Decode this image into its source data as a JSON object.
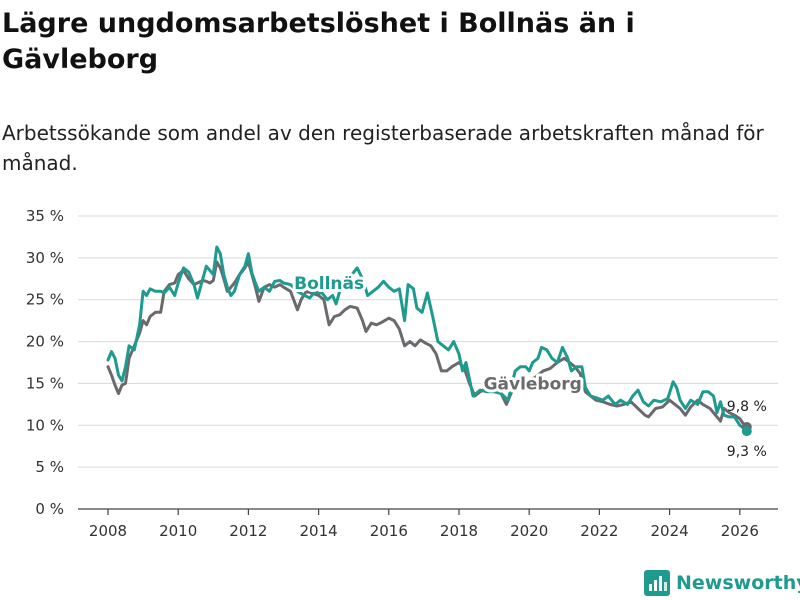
{
  "chart_data": {
    "type": "line",
    "title": "Lägre ungdomsarbetslöshet i Bollnäs än i Gävleborg",
    "subtitle": "Arbetssökande som andel av den registerbaserade arbetskraften månad för månad.",
    "xlabel": "",
    "ylabel": "",
    "xlim": [
      2007.5,
      2026.8
    ],
    "ylim": [
      0,
      35
    ],
    "x_ticks": [
      "2008",
      "2010",
      "2012",
      "2014",
      "2016",
      "2018",
      "2020",
      "2022",
      "2024",
      "2026"
    ],
    "y_ticks": [
      "0 %",
      "5 %",
      "10 %",
      "15 %",
      "20 %",
      "25 %",
      "30 %",
      "35 %"
    ],
    "grid": true,
    "series": [
      {
        "name": "Bollnäs",
        "color": "#1e9a8e",
        "end_label": "9,3 %",
        "points": [
          [
            2008.0,
            17.8
          ],
          [
            2008.1,
            18.8
          ],
          [
            2008.2,
            18.0
          ],
          [
            2008.3,
            16.0
          ],
          [
            2008.4,
            15.3
          ],
          [
            2008.5,
            17.0
          ],
          [
            2008.6,
            19.5
          ],
          [
            2008.75,
            19.0
          ],
          [
            2008.9,
            22.0
          ],
          [
            2009.0,
            26.0
          ],
          [
            2009.1,
            25.5
          ],
          [
            2009.2,
            26.3
          ],
          [
            2009.35,
            26.0
          ],
          [
            2009.5,
            26.0
          ],
          [
            2009.6,
            25.8
          ],
          [
            2009.75,
            26.5
          ],
          [
            2009.9,
            25.5
          ],
          [
            2010.0,
            27.0
          ],
          [
            2010.15,
            28.8
          ],
          [
            2010.3,
            28.3
          ],
          [
            2010.45,
            26.8
          ],
          [
            2010.55,
            25.2
          ],
          [
            2010.7,
            27.5
          ],
          [
            2010.8,
            29.0
          ],
          [
            2010.9,
            28.5
          ],
          [
            2011.0,
            28.0
          ],
          [
            2011.1,
            31.3
          ],
          [
            2011.2,
            30.5
          ],
          [
            2011.3,
            28.0
          ],
          [
            2011.4,
            26.5
          ],
          [
            2011.5,
            25.5
          ],
          [
            2011.6,
            26.0
          ],
          [
            2011.75,
            28.0
          ],
          [
            2011.9,
            29.0
          ],
          [
            2012.0,
            30.5
          ],
          [
            2012.1,
            28.2
          ],
          [
            2012.2,
            27.0
          ],
          [
            2012.3,
            26.0
          ],
          [
            2012.45,
            26.5
          ],
          [
            2012.6,
            26.0
          ],
          [
            2012.75,
            27.2
          ],
          [
            2012.9,
            27.3
          ],
          [
            2013.0,
            27.0
          ],
          [
            2013.2,
            26.8
          ],
          [
            2013.4,
            26.0
          ],
          [
            2013.6,
            25.5
          ],
          [
            2013.75,
            25.2
          ],
          [
            2013.9,
            26.0
          ],
          [
            2014.0,
            25.8
          ],
          [
            2014.1,
            25.8
          ],
          [
            2014.25,
            25.0
          ],
          [
            2014.4,
            25.5
          ],
          [
            2014.5,
            24.5
          ],
          [
            2014.6,
            26.0
          ],
          [
            2014.8,
            27.0
          ],
          [
            2014.95,
            28.0
          ],
          [
            2015.1,
            28.8
          ],
          [
            2015.25,
            27.5
          ],
          [
            2015.4,
            25.5
          ],
          [
            2015.55,
            26.0
          ],
          [
            2015.7,
            26.5
          ],
          [
            2015.85,
            27.2
          ],
          [
            2016.0,
            26.5
          ],
          [
            2016.15,
            26.0
          ],
          [
            2016.3,
            26.3
          ],
          [
            2016.45,
            22.5
          ],
          [
            2016.55,
            26.8
          ],
          [
            2016.7,
            26.3
          ],
          [
            2016.8,
            24.0
          ],
          [
            2016.95,
            23.5
          ],
          [
            2017.1,
            25.8
          ],
          [
            2017.25,
            23.0
          ],
          [
            2017.4,
            20.0
          ],
          [
            2017.55,
            19.5
          ],
          [
            2017.7,
            19.0
          ],
          [
            2017.85,
            20.0
          ],
          [
            2018.0,
            18.5
          ],
          [
            2018.1,
            16.5
          ],
          [
            2018.2,
            17.5
          ],
          [
            2018.3,
            15.5
          ],
          [
            2018.4,
            13.5
          ],
          [
            2018.6,
            14.2
          ],
          [
            2018.8,
            14.0
          ],
          [
            2019.0,
            14.0
          ],
          [
            2019.2,
            13.8
          ],
          [
            2019.4,
            13.0
          ],
          [
            2019.5,
            14.8
          ],
          [
            2019.6,
            16.5
          ],
          [
            2019.75,
            17.0
          ],
          [
            2019.9,
            17.0
          ],
          [
            2020.0,
            16.5
          ],
          [
            2020.1,
            17.5
          ],
          [
            2020.25,
            18.0
          ],
          [
            2020.35,
            19.3
          ],
          [
            2020.5,
            19.0
          ],
          [
            2020.65,
            18.0
          ],
          [
            2020.8,
            17.5
          ],
          [
            2020.95,
            19.3
          ],
          [
            2021.1,
            18.0
          ],
          [
            2021.2,
            16.5
          ],
          [
            2021.35,
            17.0
          ],
          [
            2021.5,
            17.0
          ],
          [
            2021.6,
            14.5
          ],
          [
            2021.75,
            13.5
          ],
          [
            2021.9,
            13.3
          ],
          [
            2022.1,
            13.0
          ],
          [
            2022.25,
            13.5
          ],
          [
            2022.45,
            12.5
          ],
          [
            2022.6,
            13.0
          ],
          [
            2022.8,
            12.5
          ],
          [
            2022.95,
            13.5
          ],
          [
            2023.1,
            14.2
          ],
          [
            2023.25,
            12.8
          ],
          [
            2023.4,
            12.3
          ],
          [
            2023.55,
            13.0
          ],
          [
            2023.75,
            12.8
          ],
          [
            2023.95,
            13.2
          ],
          [
            2024.1,
            15.2
          ],
          [
            2024.2,
            14.5
          ],
          [
            2024.3,
            13.0
          ],
          [
            2024.45,
            12.0
          ],
          [
            2024.6,
            13.0
          ],
          [
            2024.8,
            12.5
          ],
          [
            2024.95,
            14.0
          ],
          [
            2025.1,
            14.0
          ],
          [
            2025.25,
            13.5
          ],
          [
            2025.35,
            11.5
          ],
          [
            2025.45,
            12.8
          ],
          [
            2025.55,
            11.2
          ],
          [
            2025.7,
            11.0
          ],
          [
            2025.85,
            11.0
          ],
          [
            2026.0,
            10.0
          ],
          [
            2026.1,
            9.7
          ],
          [
            2026.2,
            9.3
          ]
        ]
      },
      {
        "name": "Gävleborg",
        "color": "#6a6a6e",
        "end_label": "9,8 %",
        "points": [
          [
            2008.0,
            17.0
          ],
          [
            2008.1,
            16.0
          ],
          [
            2008.2,
            14.8
          ],
          [
            2008.3,
            13.8
          ],
          [
            2008.4,
            14.8
          ],
          [
            2008.5,
            15.0
          ],
          [
            2008.6,
            18.0
          ],
          [
            2008.75,
            19.5
          ],
          [
            2008.9,
            21.0
          ],
          [
            2009.0,
            22.5
          ],
          [
            2009.1,
            22.0
          ],
          [
            2009.2,
            23.0
          ],
          [
            2009.35,
            23.5
          ],
          [
            2009.5,
            23.5
          ],
          [
            2009.6,
            26.0
          ],
          [
            2009.75,
            26.8
          ],
          [
            2009.9,
            27.0
          ],
          [
            2010.0,
            28.0
          ],
          [
            2010.15,
            28.5
          ],
          [
            2010.3,
            27.5
          ],
          [
            2010.45,
            26.8
          ],
          [
            2010.55,
            27.0
          ],
          [
            2010.7,
            27.3
          ],
          [
            2010.8,
            27.2
          ],
          [
            2010.9,
            27.0
          ],
          [
            2011.0,
            27.3
          ],
          [
            2011.1,
            29.5
          ],
          [
            2011.2,
            28.8
          ],
          [
            2011.3,
            27.5
          ],
          [
            2011.4,
            26.0
          ],
          [
            2011.5,
            26.5
          ],
          [
            2011.6,
            27.0
          ],
          [
            2011.75,
            28.0
          ],
          [
            2011.9,
            28.8
          ],
          [
            2012.0,
            29.5
          ],
          [
            2012.1,
            28.0
          ],
          [
            2012.2,
            26.5
          ],
          [
            2012.3,
            24.8
          ],
          [
            2012.45,
            26.5
          ],
          [
            2012.6,
            26.8
          ],
          [
            2012.75,
            26.5
          ],
          [
            2012.9,
            26.8
          ],
          [
            2013.0,
            26.5
          ],
          [
            2013.2,
            26.0
          ],
          [
            2013.4,
            23.8
          ],
          [
            2013.5,
            25.0
          ],
          [
            2013.65,
            26.0
          ],
          [
            2013.8,
            25.8
          ],
          [
            2014.0,
            25.5
          ],
          [
            2014.15,
            25.0
          ],
          [
            2014.3,
            22.0
          ],
          [
            2014.45,
            23.0
          ],
          [
            2014.6,
            23.2
          ],
          [
            2014.75,
            23.8
          ],
          [
            2014.9,
            24.2
          ],
          [
            2015.1,
            24.0
          ],
          [
            2015.25,
            22.5
          ],
          [
            2015.35,
            21.2
          ],
          [
            2015.5,
            22.2
          ],
          [
            2015.65,
            22.0
          ],
          [
            2015.8,
            22.3
          ],
          [
            2016.0,
            22.8
          ],
          [
            2016.15,
            22.5
          ],
          [
            2016.3,
            21.5
          ],
          [
            2016.45,
            19.5
          ],
          [
            2016.6,
            20.0
          ],
          [
            2016.75,
            19.5
          ],
          [
            2016.9,
            20.2
          ],
          [
            2017.05,
            19.8
          ],
          [
            2017.2,
            19.5
          ],
          [
            2017.35,
            18.5
          ],
          [
            2017.5,
            16.5
          ],
          [
            2017.65,
            16.5
          ],
          [
            2017.8,
            17.0
          ],
          [
            2018.0,
            17.5
          ],
          [
            2018.15,
            16.8
          ],
          [
            2018.3,
            15.0
          ],
          [
            2018.45,
            13.5
          ],
          [
            2018.6,
            14.0
          ],
          [
            2018.8,
            14.5
          ],
          [
            2019.0,
            14.5
          ],
          [
            2019.2,
            13.8
          ],
          [
            2019.35,
            12.5
          ],
          [
            2019.5,
            14.0
          ],
          [
            2019.65,
            14.5
          ],
          [
            2019.85,
            15.0
          ],
          [
            2020.0,
            15.3
          ],
          [
            2020.2,
            15.8
          ],
          [
            2020.4,
            16.5
          ],
          [
            2020.6,
            16.8
          ],
          [
            2020.8,
            17.5
          ],
          [
            2021.0,
            18.0
          ],
          [
            2021.15,
            17.5
          ],
          [
            2021.3,
            17.0
          ],
          [
            2021.45,
            16.2
          ],
          [
            2021.6,
            14.0
          ],
          [
            2021.75,
            13.5
          ],
          [
            2021.9,
            13.0
          ],
          [
            2022.1,
            12.8
          ],
          [
            2022.3,
            12.5
          ],
          [
            2022.5,
            12.3
          ],
          [
            2022.7,
            12.5
          ],
          [
            2022.9,
            12.8
          ],
          [
            2023.1,
            12.0
          ],
          [
            2023.3,
            11.2
          ],
          [
            2023.4,
            11.0
          ],
          [
            2023.6,
            12.0
          ],
          [
            2023.8,
            12.2
          ],
          [
            2024.0,
            13.0
          ],
          [
            2024.15,
            12.5
          ],
          [
            2024.3,
            12.0
          ],
          [
            2024.45,
            11.2
          ],
          [
            2024.6,
            12.2
          ],
          [
            2024.8,
            13.0
          ],
          [
            2024.95,
            12.5
          ],
          [
            2025.15,
            12.0
          ],
          [
            2025.35,
            11.0
          ],
          [
            2025.45,
            10.5
          ],
          [
            2025.55,
            12.0
          ],
          [
            2025.7,
            11.5
          ],
          [
            2025.85,
            11.2
          ],
          [
            2026.0,
            10.8
          ],
          [
            2026.1,
            10.2
          ],
          [
            2026.2,
            9.8
          ]
        ]
      }
    ]
  },
  "brand": {
    "name": "Newsworthy",
    "color": "#1e9a8e"
  }
}
